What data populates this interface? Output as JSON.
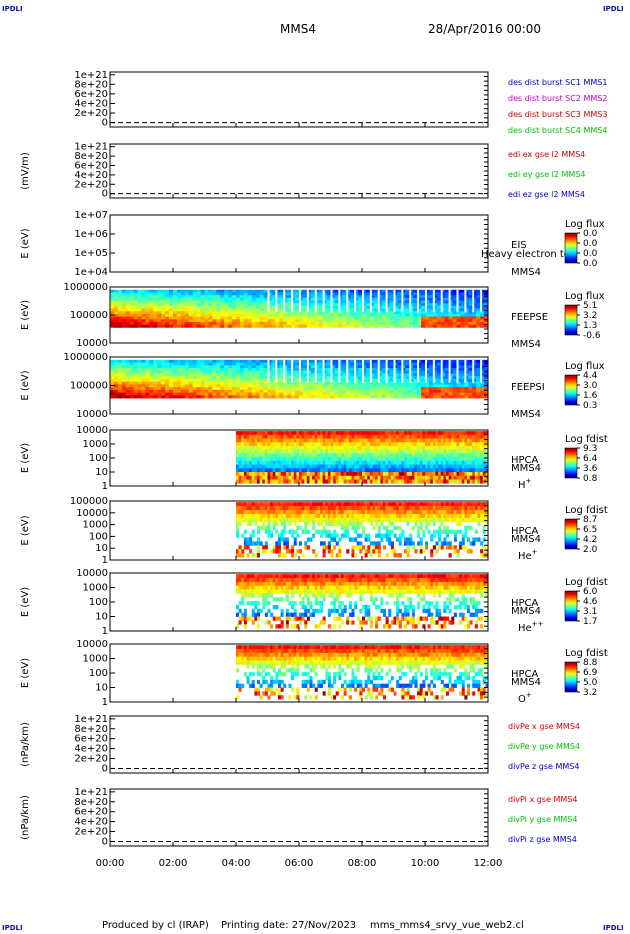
{
  "header": {
    "spacecraft": "MMS4",
    "date": "28/Apr/2016 00:00",
    "corner_label": "IPDLI"
  },
  "footer": {
    "produced_by": "Produced by cl (IRAP)",
    "printing_date": "Printing date: 27/Nov/2023",
    "file": "mms_mms4_srvy_vue_web2.cl"
  },
  "chart_data": {
    "type": "heatmap",
    "x_ticks": [
      "00:00",
      "02:00",
      "04:00",
      "06:00",
      "08:00",
      "10:00",
      "12:00"
    ],
    "x_range_hours": [
      0,
      12
    ],
    "panels": [
      {
        "id": "p1",
        "kind": "line",
        "ylabel": "",
        "ticks": [
          "1e+21",
          "8e+20",
          "6e+20",
          "4e+20",
          "2e+20",
          "0"
        ],
        "series": [
          {
            "name": "des dist burst SC1 MMS1",
            "color": "#0000c8"
          },
          {
            "name": "des dist burst SC2 MMS2",
            "color": "#c800c8"
          },
          {
            "name": "des dist burst SC3 MMS3",
            "color": "#d00000"
          },
          {
            "name": "des dist burst SC4 MMS4",
            "color": "#00c000"
          }
        ]
      },
      {
        "id": "p2",
        "kind": "line",
        "ylabel": "(mV/m)",
        "ticks": [
          "1e+21",
          "8e+20",
          "6e+20",
          "4e+20",
          "2e+20",
          "0"
        ],
        "series": [
          {
            "name": "edi ex gse l2 MMS4",
            "color": "#d00000"
          },
          {
            "name": "edi ey gse l2 MMS4",
            "color": "#00c000"
          },
          {
            "name": "edi ez gse l2 MMS4",
            "color": "#0000c8"
          }
        ]
      },
      {
        "id": "p3",
        "kind": "spec",
        "ylabel": "E (eV)",
        "ticks": [
          "1e+07",
          "1e+06",
          "1e+05",
          "1e+04"
        ],
        "instrument": "EIS",
        "instrument2": "Heavy electron to",
        "sc": "MMS4",
        "cbar_title": "Log flux",
        "cbar_ticks": [
          "0.0",
          "0.0",
          "0.0",
          "0.0"
        ],
        "time_coverage": [
          0,
          0
        ]
      },
      {
        "id": "p4",
        "kind": "spec",
        "ylabel": "E (eV)",
        "ticks": [
          "1000000",
          "100000",
          "10000"
        ],
        "instrument": "FEEPSE",
        "sc": "MMS4",
        "cbar_title": "Log flux",
        "cbar_ticks": [
          "5.1",
          "3.2",
          "1.3",
          "-0.6"
        ],
        "time_coverage": [
          0,
          12
        ]
      },
      {
        "id": "p5",
        "kind": "spec",
        "ylabel": "E (eV)",
        "ticks": [
          "1000000",
          "100000",
          "10000"
        ],
        "instrument": "FEEPSI",
        "sc": "MMS4",
        "cbar_title": "Log flux",
        "cbar_ticks": [
          "4.4",
          "3.0",
          "1.6",
          "0.3"
        ],
        "time_coverage": [
          0,
          12
        ]
      },
      {
        "id": "p6",
        "kind": "spec",
        "ylabel": "E (eV)",
        "ticks": [
          "10000",
          "1000",
          "100",
          "10",
          "1"
        ],
        "instrument": "HPCA",
        "sc": "MMS4",
        "species": "H",
        "species_sup": "+",
        "cbar_title": "Log fdist",
        "cbar_ticks": [
          "9.3",
          "6.4",
          "3.6",
          "0.8"
        ],
        "time_coverage": [
          4.0,
          12
        ]
      },
      {
        "id": "p7",
        "kind": "spec",
        "ylabel": "E (eV)",
        "ticks": [
          "100000",
          "10000",
          "1000",
          "100",
          "10",
          "1"
        ],
        "instrument": "HPCA",
        "sc": "MMS4",
        "species": "He",
        "species_sup": "+",
        "cbar_title": "Log fdist",
        "cbar_ticks": [
          "8.7",
          "6.5",
          "4.2",
          "2.0"
        ],
        "time_coverage": [
          4.0,
          12
        ]
      },
      {
        "id": "p8",
        "kind": "spec",
        "ylabel": "E (eV)",
        "ticks": [
          "10000",
          "1000",
          "100",
          "10",
          "1"
        ],
        "instrument": "HPCA",
        "sc": "MMS4",
        "species": "He",
        "species_sup": "++",
        "cbar_title": "Log fdist",
        "cbar_ticks": [
          "6.0",
          "4.6",
          "3.1",
          "1.7"
        ],
        "time_coverage": [
          4.0,
          12
        ]
      },
      {
        "id": "p9",
        "kind": "spec",
        "ylabel": "E (eV)",
        "ticks": [
          "10000",
          "1000",
          "100",
          "10",
          "1"
        ],
        "instrument": "HPCA",
        "sc": "MMS4",
        "species": "O",
        "species_sup": "+",
        "cbar_title": "Log fdist",
        "cbar_ticks": [
          "8.8",
          "6.9",
          "5.0",
          "3.2"
        ],
        "time_coverage": [
          4.0,
          12
        ]
      },
      {
        "id": "p10",
        "kind": "line",
        "ylabel": "(nPa/km)",
        "ticks": [
          "1e+21",
          "8e+20",
          "6e+20",
          "4e+20",
          "2e+20",
          "0"
        ],
        "series": [
          {
            "name": "divPe x gse MMS4",
            "color": "#d00000"
          },
          {
            "name": "divPe y gse MMS4",
            "color": "#00c000"
          },
          {
            "name": "divPe z gse MMS4",
            "color": "#0000c8"
          }
        ]
      },
      {
        "id": "p11",
        "kind": "line",
        "ylabel": "(nPa/km)",
        "ticks": [
          "1e+21",
          "8e+20",
          "6e+20",
          "4e+20",
          "2e+20",
          "0"
        ],
        "series": [
          {
            "name": "divPi x gse MMS4",
            "color": "#d00000"
          },
          {
            "name": "divPi y gse MMS4",
            "color": "#00c000"
          },
          {
            "name": "divPi z gse MMS4",
            "color": "#0000c8"
          }
        ]
      }
    ]
  }
}
